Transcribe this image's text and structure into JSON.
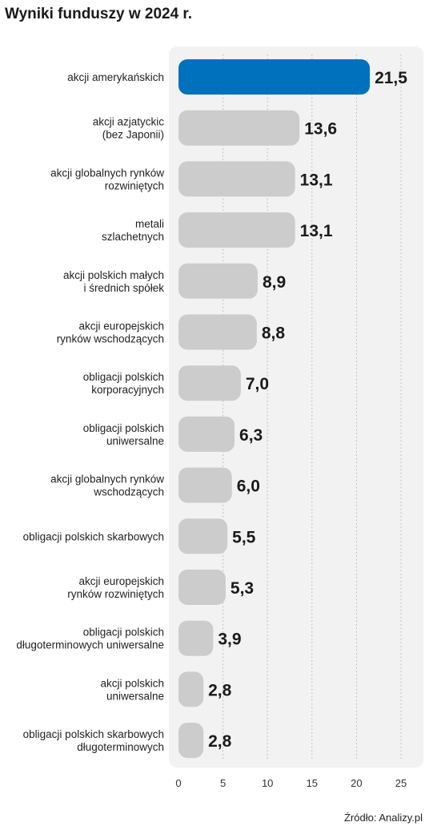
{
  "chart_data": {
    "type": "bar",
    "orientation": "horizontal",
    "title": "Wyniki funduszy w 2024 r.",
    "categories": [
      [
        "akcji amerykańskich"
      ],
      [
        "akcji azjatyckic",
        "(bez Japonii)"
      ],
      [
        "akcji globalnych rynków",
        "rozwiniętych"
      ],
      [
        "metali",
        "szlachetnych"
      ],
      [
        "akcji polskich małych",
        "i średnich spółek"
      ],
      [
        "akcji europejskich",
        "rynków wschodzących"
      ],
      [
        "obligacji polskich",
        "korporacyjnych"
      ],
      [
        "obligacji polskich",
        "uniwersalne"
      ],
      [
        "akcji globalnych rynków",
        "wschodzących"
      ],
      [
        "obligacji polskich skarbowych"
      ],
      [
        "akcji europejskich",
        "rynków rozwiniętych"
      ],
      [
        "obligacji polskich",
        "długoterminowych uniwersalne"
      ],
      [
        "akcji polskich",
        "uniwersalne"
      ],
      [
        "obligacji polskich skarbowych",
        "długoterminowych"
      ]
    ],
    "values": [
      21.5,
      13.6,
      13.1,
      13.1,
      8.9,
      8.8,
      7.0,
      6.3,
      6.0,
      5.5,
      5.3,
      3.9,
      2.8,
      2.8
    ],
    "value_labels": [
      "21,5",
      "13,6",
      "13,1",
      "13,1",
      "8,9",
      "8,8",
      "7,0",
      "6,3",
      "6,0",
      "5,5",
      "5,3",
      "3,9",
      "2,8",
      "2,8"
    ],
    "xlim": [
      0,
      25
    ],
    "xticks": [
      0,
      5,
      10,
      15,
      20,
      25
    ],
    "grid": "vertical dotted",
    "highlight_index": 0,
    "colors": {
      "highlight": "#0071bc",
      "bar": "#cccccc",
      "panel": "#f2f2f2",
      "grid": "#b5b5b5"
    },
    "source": "Źródło: Analizy.pl"
  }
}
